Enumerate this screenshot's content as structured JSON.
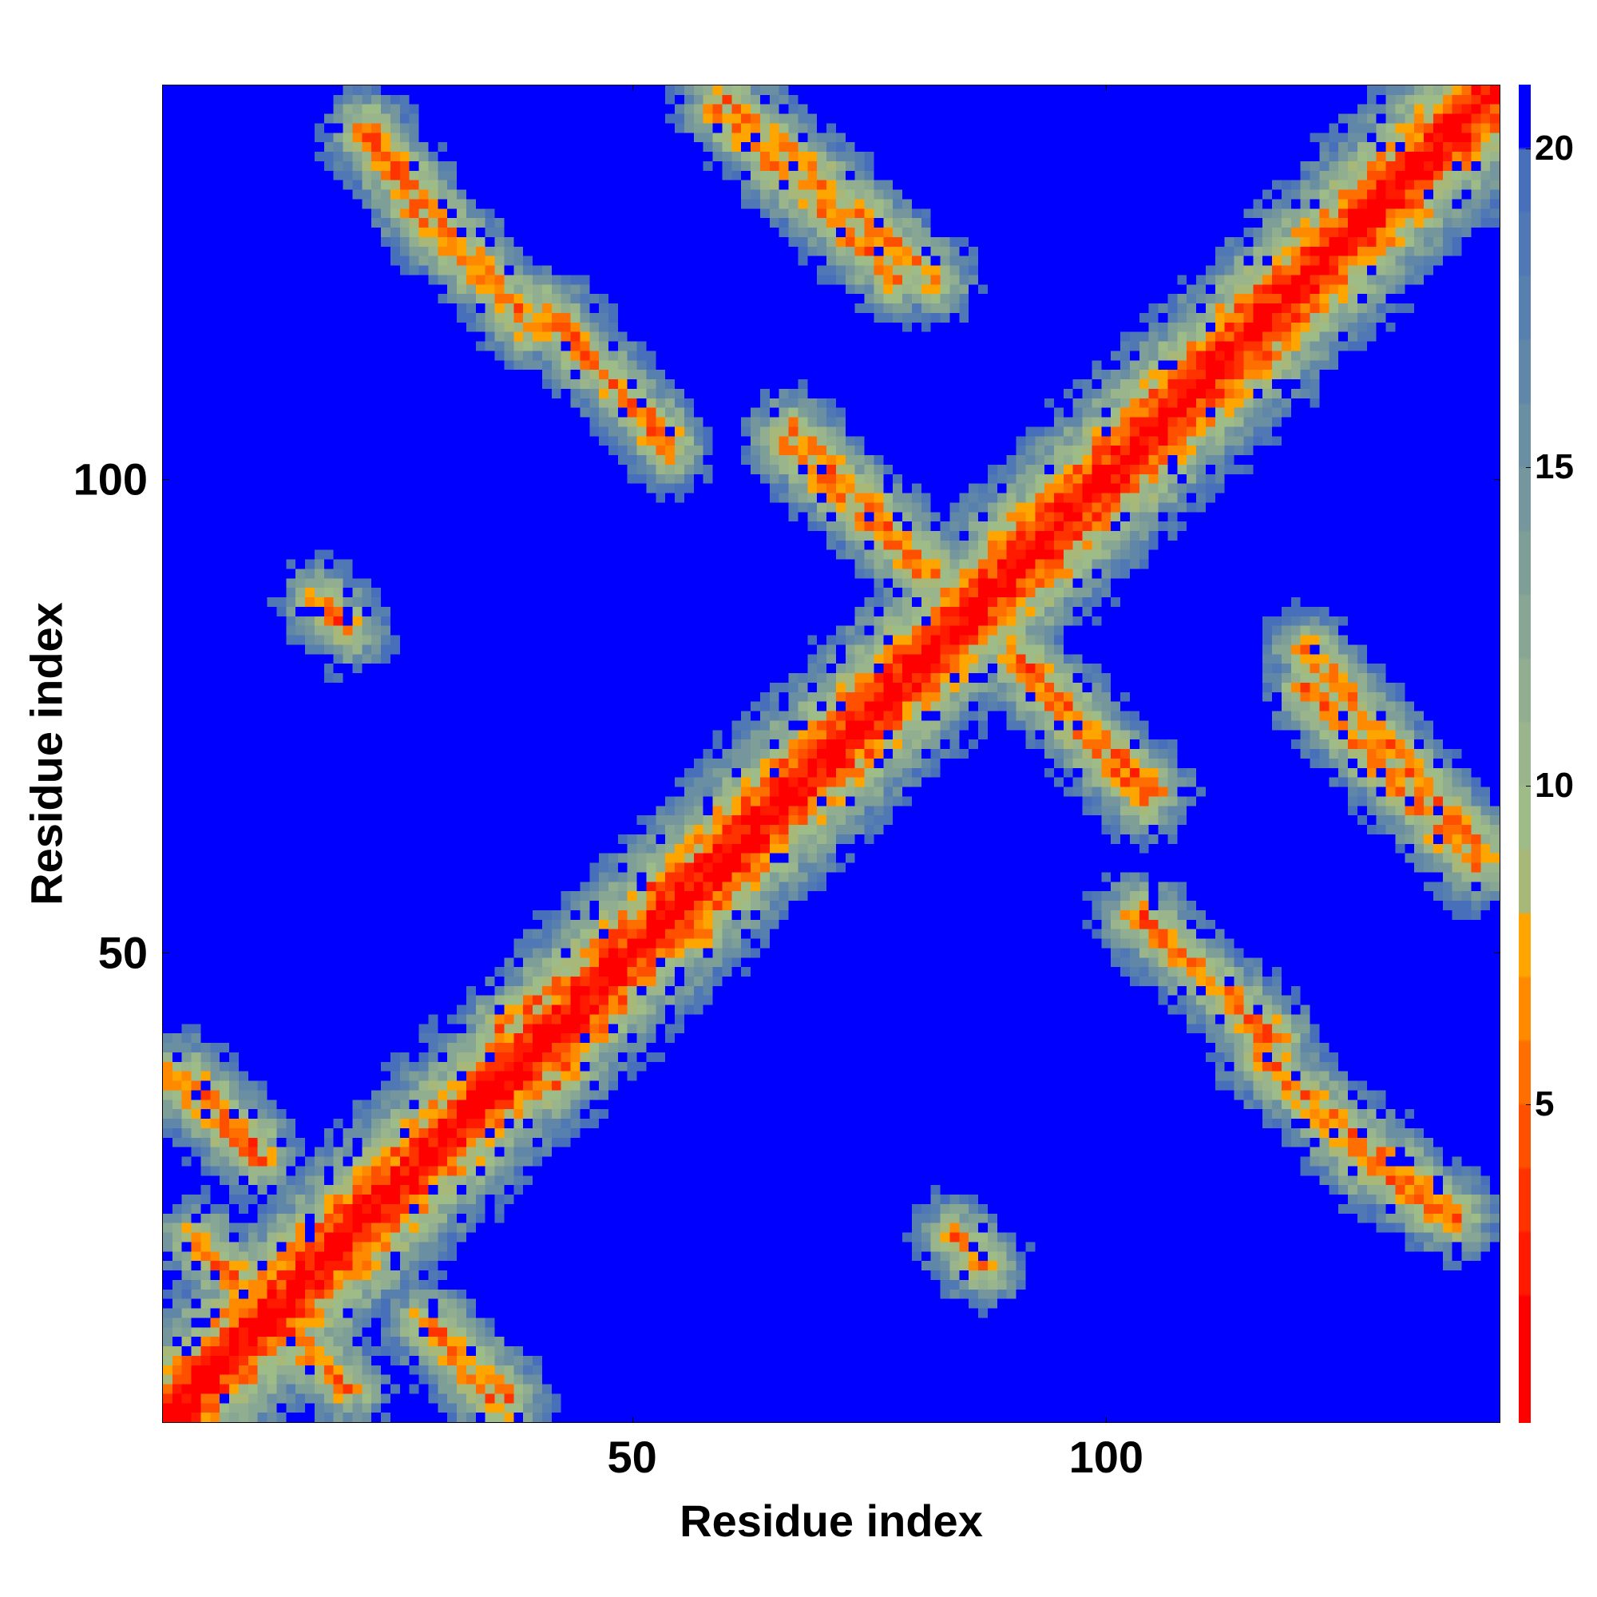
{
  "chart_data": {
    "type": "heatmap",
    "title": "",
    "xlabel": "Residue index",
    "ylabel": "Residue index",
    "n_residues": 141,
    "xlim": [
      1,
      141
    ],
    "ylim": [
      1,
      141
    ],
    "x_ticks": [
      50,
      100
    ],
    "y_ticks": [
      50,
      100
    ],
    "colorbar": {
      "vmin": 0,
      "vmax": 21,
      "ticks": [
        5,
        10,
        15,
        20
      ],
      "colors": [
        {
          "from": 0,
          "to": 2,
          "color": "#ff0000"
        },
        {
          "from": 2,
          "to": 3,
          "color": "#ff1a00"
        },
        {
          "from": 3,
          "to": 4,
          "color": "#ff3300"
        },
        {
          "from": 4,
          "to": 5,
          "color": "#ff5000"
        },
        {
          "from": 5,
          "to": 6,
          "color": "#ff6e00"
        },
        {
          "from": 6,
          "to": 7,
          "color": "#ff8a00"
        },
        {
          "from": 7,
          "to": 8,
          "color": "#ffa500"
        },
        {
          "from": 8,
          "to": 9,
          "color": "#a8b878"
        },
        {
          "from": 9,
          "to": 10,
          "color": "#9ebc88"
        },
        {
          "from": 10,
          "to": 11,
          "color": "#9ab58c"
        },
        {
          "from": 11,
          "to": 12,
          "color": "#92ae90"
        },
        {
          "from": 12,
          "to": 13,
          "color": "#88a694"
        },
        {
          "from": 13,
          "to": 14,
          "color": "#7e9e98"
        },
        {
          "from": 14,
          "to": 15,
          "color": "#74969c"
        },
        {
          "from": 15,
          "to": 16,
          "color": "#6a8ea2"
        },
        {
          "from": 16,
          "to": 17,
          "color": "#6187a8"
        },
        {
          "from": 17,
          "to": 18,
          "color": "#5880ae"
        },
        {
          "from": 18,
          "to": 19,
          "color": "#5078b4"
        },
        {
          "from": 19,
          "to": 20,
          "color": "#4870ba"
        },
        {
          "from": 20,
          "to": 21,
          "color": "#0000ff"
        }
      ]
    },
    "contact_bands": [
      {
        "kind": "main-diagonal",
        "start": [
          1,
          1
        ],
        "end": [
          141,
          141
        ]
      },
      {
        "kind": "anti-parallel",
        "start": [
          1,
          37
        ],
        "end": [
          11,
          28
        ]
      },
      {
        "kind": "anti-parallel",
        "start": [
          6,
          18
        ],
        "end": [
          10,
          14
        ]
      },
      {
        "kind": "anti-parallel",
        "start": [
          30,
          10
        ],
        "end": [
          37,
          3
        ]
      },
      {
        "kind": "parallel",
        "start": [
          16,
          7
        ],
        "end": [
          20,
          4
        ]
      },
      {
        "kind": "anti-parallel",
        "start": [
          22,
          136
        ],
        "end": [
          27,
          129
        ]
      },
      {
        "kind": "anti-parallel",
        "start": [
          27,
          128
        ],
        "end": [
          38,
          118
        ]
      },
      {
        "kind": "anti-parallel",
        "start": [
          41,
          117
        ],
        "end": [
          54,
          104
        ]
      },
      {
        "kind": "anti-parallel",
        "start": [
          59,
          139
        ],
        "end": [
          78,
          121
        ]
      },
      {
        "kind": "anti-parallel",
        "start": [
          66,
          104
        ],
        "end": [
          81,
          90
        ]
      },
      {
        "kind": "anti-parallel",
        "start": [
          90,
          82
        ],
        "end": [
          105,
          67
        ]
      },
      {
        "kind": "anti-parallel",
        "start": [
          103,
          54
        ],
        "end": [
          118,
          41
        ]
      },
      {
        "kind": "anti-parallel",
        "start": [
          116,
          39
        ],
        "end": [
          137,
          22
        ]
      },
      {
        "kind": "anti-parallel",
        "start": [
          121,
          82
        ],
        "end": [
          140,
          60
        ]
      },
      {
        "kind": "cluster",
        "start": [
          84,
          20
        ],
        "end": [
          87,
          17
        ]
      },
      {
        "kind": "cluster",
        "start": [
          52,
          57
        ],
        "end": [
          64,
          64
        ]
      },
      {
        "kind": "cluster",
        "start": [
          36,
          42
        ],
        "end": [
          43,
          47
        ]
      }
    ]
  }
}
